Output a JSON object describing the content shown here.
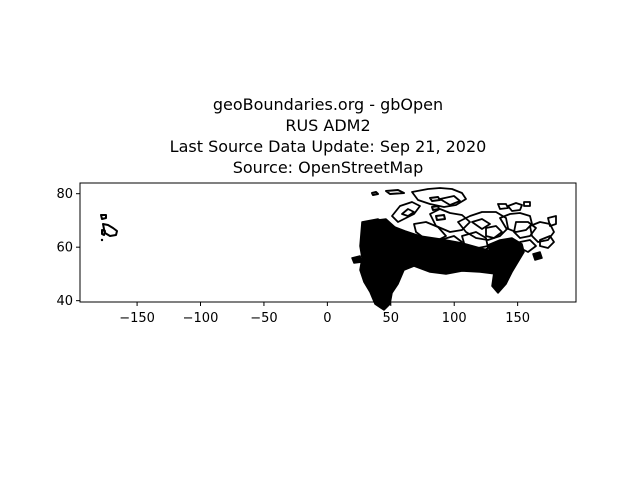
{
  "title_lines": [
    "geoBoundaries.org - gbOpen",
    "RUS ADM2",
    "Last Source Data Update: Sep 21, 2020",
    "Source: OpenStreetMap"
  ],
  "chart_data": {
    "type": "map",
    "region": "RUS ADM2",
    "xlim": [
      -195,
      196
    ],
    "ylim": [
      39.5,
      84
    ],
    "x_ticks": [
      -150,
      -100,
      -50,
      0,
      50,
      100,
      150
    ],
    "y_ticks": [
      40,
      60,
      80
    ],
    "grid": false,
    "line_color": "#000000",
    "fill_color": "#000000"
  }
}
